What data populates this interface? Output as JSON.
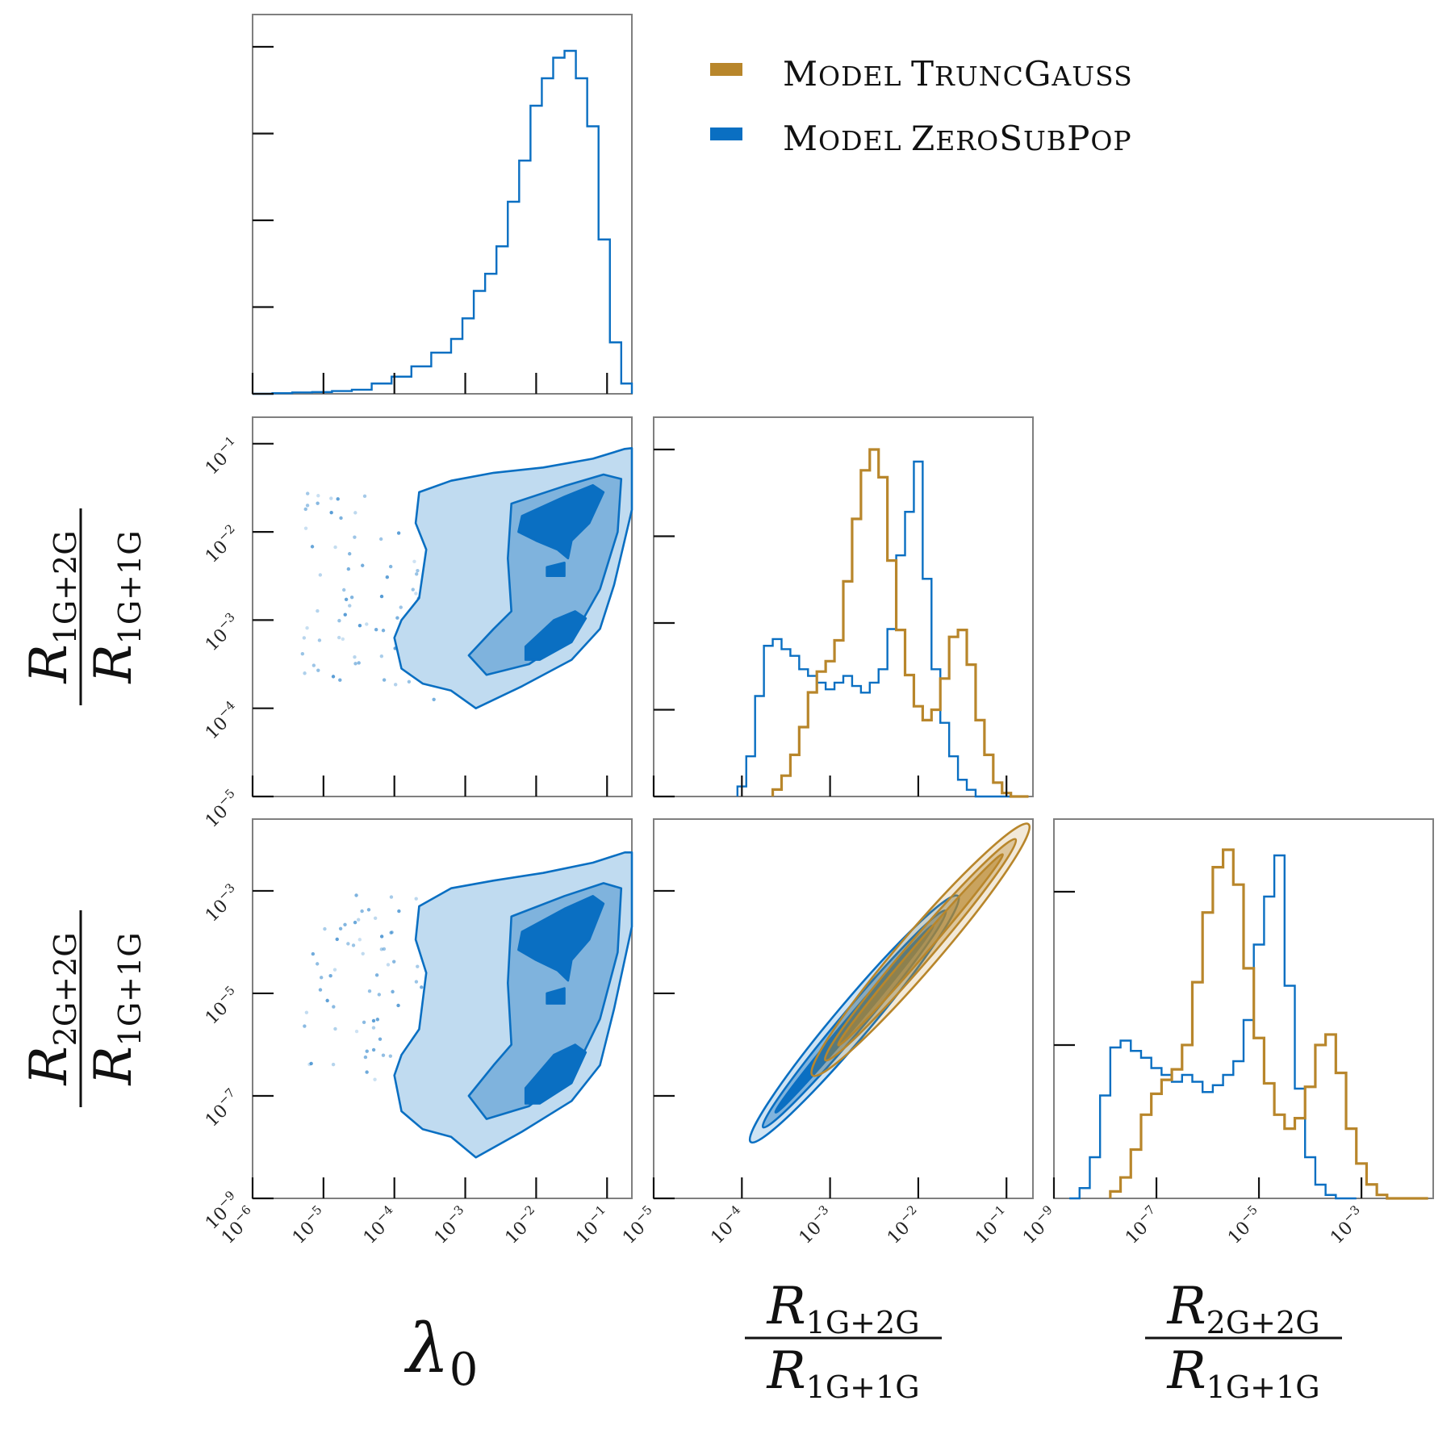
{
  "chart_data": {
    "type": "corner",
    "parameters": [
      {
        "key": "lambda0",
        "label": "λ",
        "sub": "0",
        "scale": "log",
        "range_exp": [
          -6,
          -0.65
        ],
        "tick_exponents": [
          -6,
          -5,
          -4,
          -3,
          -2,
          -1
        ]
      },
      {
        "key": "r12",
        "label_num": "R",
        "num_sub": "1G+2G",
        "label_den": "R",
        "den_sub": "1G+1G",
        "scale": "log",
        "range_exp": [
          -5,
          -0.7
        ],
        "tick_exponents": [
          -5,
          -4,
          -3,
          -2,
          -1
        ]
      },
      {
        "key": "r22",
        "label_num": "R",
        "num_sub": "2G+2G",
        "label_den": "R",
        "den_sub": "1G+1G",
        "scale": "log",
        "range_exp": [
          -9,
          -1.6
        ],
        "tick_exponents": [
          -9,
          -7,
          -5,
          -3
        ]
      }
    ],
    "legend": {
      "placement": "top-right",
      "entries": [
        {
          "first": "M",
          "rest": "ODEL ",
          "first2": "T",
          "rest2": "RUNC",
          "first3": "G",
          "rest3": "AUSS",
          "color": "#b8862b"
        },
        {
          "first": "M",
          "rest": "ODEL ",
          "first2": "Z",
          "rest2": "ERO",
          "first3": "S",
          "rest3": "UB",
          "first4": "P",
          "rest4": "OP",
          "color": "#0a6fc2"
        }
      ]
    },
    "colors": {
      "truncgauss": "#b8862b",
      "zerosubpop": "#0a6fc2",
      "fill_light": "#c0dbf0",
      "fill_mid": "#7fb3dd",
      "fill_dark": "#0a6fc2",
      "frame": "#7f7f7f",
      "tick": "#111111"
    },
    "marginals": {
      "lambda0": {
        "zerosubpop": {
          "bin_edges_exp": [
            -6,
            -5.72,
            -5.44,
            -5.16,
            -4.88,
            -4.6,
            -4.32,
            -4.04,
            -3.76,
            -3.48,
            -3.2,
            -3.04,
            -2.88,
            -2.72,
            -2.56,
            -2.4,
            -2.24,
            -2.08,
            -1.92,
            -1.76,
            -1.6,
            -1.44,
            -1.28,
            -1.12,
            -0.96,
            -0.8,
            -0.65
          ],
          "heights": [
            0.0,
            0.002,
            0.004,
            0.005,
            0.008,
            0.012,
            0.03,
            0.05,
            0.08,
            0.12,
            0.16,
            0.22,
            0.3,
            0.35,
            0.43,
            0.56,
            0.68,
            0.84,
            0.92,
            0.98,
            1.0,
            0.92,
            0.78,
            0.45,
            0.15,
            0.03
          ]
        }
      },
      "r12": {
        "zerosubpop": {
          "bins_exp": [
            -4.0,
            -3.9,
            -3.8,
            -3.7,
            -3.6,
            -3.5,
            -3.4,
            -3.3,
            -3.2,
            -3.1,
            -3.0,
            -2.9,
            -2.8,
            -2.7,
            -2.6,
            -2.5,
            -2.4,
            -2.3,
            -2.2,
            -2.1,
            -2.0,
            -1.9,
            -1.8,
            -1.7,
            -1.6,
            -1.5,
            -1.4,
            -1.3,
            -1.2,
            -1.1,
            -1.0
          ],
          "heights": [
            0.03,
            0.12,
            0.3,
            0.45,
            0.47,
            0.44,
            0.42,
            0.38,
            0.36,
            0.34,
            0.32,
            0.34,
            0.36,
            0.33,
            0.31,
            0.34,
            0.38,
            0.5,
            0.72,
            0.85,
            1.0,
            0.65,
            0.38,
            0.22,
            0.12,
            0.05,
            0.02,
            0.0,
            0.0,
            0.0,
            0.0
          ]
        },
        "truncgauss": {
          "bins_exp": [
            -3.6,
            -3.5,
            -3.4,
            -3.3,
            -3.2,
            -3.1,
            -3.0,
            -2.9,
            -2.8,
            -2.7,
            -2.6,
            -2.5,
            -2.4,
            -2.3,
            -2.2,
            -2.1,
            -2.0,
            -1.9,
            -1.8,
            -1.7,
            -1.6,
            -1.5,
            -1.4,
            -1.3,
            -1.2,
            -1.1,
            -1.0,
            -0.9,
            -0.8
          ],
          "heights": [
            0.02,
            0.06,
            0.12,
            0.2,
            0.3,
            0.36,
            0.39,
            0.45,
            0.62,
            0.8,
            0.94,
            1.0,
            0.92,
            0.68,
            0.48,
            0.35,
            0.26,
            0.22,
            0.25,
            0.34,
            0.46,
            0.48,
            0.38,
            0.22,
            0.12,
            0.04,
            0.01,
            0.0,
            0.0
          ]
        }
      },
      "r22": {
        "zerosubpop": {
          "bins_exp": [
            -8.6,
            -8.4,
            -8.2,
            -8.0,
            -7.8,
            -7.6,
            -7.4,
            -7.2,
            -7.0,
            -6.8,
            -6.6,
            -6.4,
            -6.2,
            -6.0,
            -5.8,
            -5.6,
            -5.4,
            -5.2,
            -5.0,
            -4.8,
            -4.6,
            -4.4,
            -4.2,
            -4.0,
            -3.8,
            -3.6,
            -3.4,
            -3.2
          ],
          "heights": [
            0.0,
            0.03,
            0.12,
            0.3,
            0.44,
            0.46,
            0.43,
            0.41,
            0.38,
            0.36,
            0.34,
            0.36,
            0.34,
            0.31,
            0.33,
            0.36,
            0.4,
            0.52,
            0.74,
            0.88,
            1.0,
            0.62,
            0.32,
            0.12,
            0.04,
            0.01,
            0.0,
            0.0
          ]
        },
        "truncgauss": {
          "bins_exp": [
            -7.8,
            -7.6,
            -7.4,
            -7.2,
            -7.0,
            -6.8,
            -6.6,
            -6.4,
            -6.2,
            -6.0,
            -5.8,
            -5.6,
            -5.4,
            -5.2,
            -5.0,
            -4.8,
            -4.6,
            -4.4,
            -4.2,
            -4.0,
            -3.8,
            -3.6,
            -3.4,
            -3.2,
            -3.0,
            -2.8,
            -2.6,
            -2.4,
            -2.2,
            -2.0,
            -1.8
          ],
          "heights": [
            0.02,
            0.06,
            0.14,
            0.24,
            0.3,
            0.34,
            0.37,
            0.44,
            0.62,
            0.82,
            0.95,
            1.0,
            0.9,
            0.66,
            0.46,
            0.33,
            0.24,
            0.2,
            0.23,
            0.32,
            0.44,
            0.47,
            0.36,
            0.2,
            0.1,
            0.04,
            0.01,
            0.0,
            0.0,
            0.0,
            0.0
          ]
        }
      }
    },
    "joint": {
      "lambda0_vs_r12": {
        "levels": [
          {
            "name": "outer",
            "points": [
              [
                -3.65,
                -1.55
              ],
              [
                -3.2,
                -1.42
              ],
              [
                -2.6,
                -1.33
              ],
              [
                -1.9,
                -1.27
              ],
              [
                -1.2,
                -1.17
              ],
              [
                -0.75,
                -1.06
              ],
              [
                -0.65,
                -1.05
              ],
              [
                -0.65,
                -1.75
              ],
              [
                -0.9,
                -2.6
              ],
              [
                -1.1,
                -3.1
              ],
              [
                -1.5,
                -3.45
              ],
              [
                -2.2,
                -3.75
              ],
              [
                -2.85,
                -4.0
              ],
              [
                -3.2,
                -3.8
              ],
              [
                -3.6,
                -3.72
              ],
              [
                -3.9,
                -3.55
              ],
              [
                -4.0,
                -3.2
              ],
              [
                -3.9,
                -3.0
              ],
              [
                -3.65,
                -2.75
              ],
              [
                -3.55,
                -2.2
              ],
              [
                -3.7,
                -1.9
              ]
            ]
          },
          {
            "name": "middle",
            "points": [
              [
                -2.35,
                -1.68
              ],
              [
                -1.6,
                -1.48
              ],
              [
                -1.05,
                -1.35
              ],
              [
                -0.8,
                -1.4
              ],
              [
                -0.85,
                -2.0
              ],
              [
                -1.1,
                -2.65
              ],
              [
                -1.45,
                -3.15
              ],
              [
                -2.1,
                -3.5
              ],
              [
                -2.7,
                -3.62
              ],
              [
                -2.95,
                -3.4
              ],
              [
                -2.6,
                -3.1
              ],
              [
                -2.35,
                -2.9
              ],
              [
                -2.4,
                -2.3
              ]
            ]
          },
          {
            "name": "inner-top",
            "points": [
              [
                -2.2,
                -1.82
              ],
              [
                -1.6,
                -1.6
              ],
              [
                -1.2,
                -1.47
              ],
              [
                -1.05,
                -1.55
              ],
              [
                -1.25,
                -1.9
              ],
              [
                -1.5,
                -2.1
              ],
              [
                -1.55,
                -2.3
              ],
              [
                -1.7,
                -2.2
              ],
              [
                -2.0,
                -2.1
              ],
              [
                -2.25,
                -2.0
              ]
            ]
          },
          {
            "name": "inner-mid",
            "points": [
              [
                -1.85,
                -2.4
              ],
              [
                -1.6,
                -2.35
              ],
              [
                -1.6,
                -2.5
              ],
              [
                -1.85,
                -2.5
              ]
            ]
          },
          {
            "name": "inner-low",
            "points": [
              [
                -2.15,
                -3.3
              ],
              [
                -1.75,
                -3.0
              ],
              [
                -1.45,
                -2.9
              ],
              [
                -1.3,
                -2.98
              ],
              [
                -1.5,
                -3.25
              ],
              [
                -1.95,
                -3.45
              ],
              [
                -2.15,
                -3.45
              ]
            ]
          }
        ]
      },
      "lambda0_vs_r22": {
        "levels": [
          {
            "name": "outer",
            "points": [
              [
                -3.65,
                -3.3
              ],
              [
                -3.2,
                -2.95
              ],
              [
                -2.6,
                -2.8
              ],
              [
                -1.9,
                -2.65
              ],
              [
                -1.2,
                -2.45
              ],
              [
                -0.75,
                -2.25
              ],
              [
                -0.65,
                -2.25
              ],
              [
                -0.65,
                -3.7
              ],
              [
                -0.9,
                -5.3
              ],
              [
                -1.1,
                -6.4
              ],
              [
                -1.5,
                -7.1
              ],
              [
                -2.2,
                -7.7
              ],
              [
                -2.85,
                -8.2
              ],
              [
                -3.2,
                -7.8
              ],
              [
                -3.6,
                -7.65
              ],
              [
                -3.9,
                -7.3
              ],
              [
                -4.0,
                -6.6
              ],
              [
                -3.9,
                -6.2
              ],
              [
                -3.65,
                -5.7
              ],
              [
                -3.55,
                -4.6
              ],
              [
                -3.7,
                -3.95
              ]
            ]
          },
          {
            "name": "middle",
            "points": [
              [
                -2.35,
                -3.5
              ],
              [
                -1.6,
                -3.1
              ],
              [
                -1.05,
                -2.85
              ],
              [
                -0.8,
                -2.95
              ],
              [
                -0.85,
                -4.2
              ],
              [
                -1.1,
                -5.5
              ],
              [
                -1.45,
                -6.5
              ],
              [
                -2.1,
                -7.2
              ],
              [
                -2.7,
                -7.45
              ],
              [
                -2.95,
                -7.0
              ],
              [
                -2.6,
                -6.4
              ],
              [
                -2.35,
                -6.0
              ],
              [
                -2.4,
                -4.8
              ]
            ]
          },
          {
            "name": "inner-top",
            "points": [
              [
                -2.2,
                -3.8
              ],
              [
                -1.6,
                -3.35
              ],
              [
                -1.2,
                -3.1
              ],
              [
                -1.05,
                -3.25
              ],
              [
                -1.25,
                -3.95
              ],
              [
                -1.5,
                -4.35
              ],
              [
                -1.55,
                -4.75
              ],
              [
                -1.7,
                -4.55
              ],
              [
                -2.0,
                -4.35
              ],
              [
                -2.25,
                -4.15
              ]
            ]
          },
          {
            "name": "inner-mid",
            "points": [
              [
                -1.85,
                -5.0
              ],
              [
                -1.6,
                -4.9
              ],
              [
                -1.6,
                -5.2
              ],
              [
                -1.85,
                -5.2
              ]
            ]
          },
          {
            "name": "inner-low",
            "points": [
              [
                -2.15,
                -6.85
              ],
              [
                -1.75,
                -6.2
              ],
              [
                -1.45,
                -6.0
              ],
              [
                -1.3,
                -6.15
              ],
              [
                -1.5,
                -6.75
              ],
              [
                -1.95,
                -7.15
              ],
              [
                -2.15,
                -7.15
              ]
            ]
          }
        ]
      },
      "r12_vs_r22": {
        "zerosubpop": {
          "center_start": [
            -3.9,
            -7.9
          ],
          "center_end": [
            -1.55,
            -3.1
          ]
        },
        "truncgauss": {
          "center_start": [
            -3.2,
            -6.6
          ],
          "center_end": [
            -0.75,
            -1.7
          ]
        }
      }
    }
  }
}
